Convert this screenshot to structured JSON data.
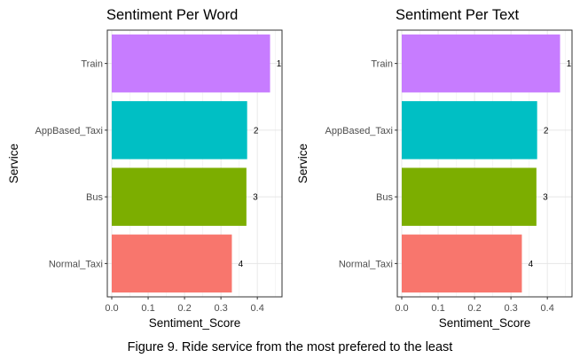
{
  "caption": "Figure 9. Ride service from the most prefered to the least",
  "chart_data": [
    {
      "type": "bar",
      "orientation": "horizontal",
      "title": "Sentiment Per Word",
      "xlabel": "Sentiment_Score",
      "ylabel": "Service",
      "categories": [
        "Normal_Taxi",
        "Bus",
        "AppBased_Taxi",
        "Train"
      ],
      "values": [
        0.33,
        0.37,
        0.372,
        0.435
      ],
      "bar_labels": [
        "4",
        "3",
        "2",
        "1"
      ],
      "colors": [
        "#F8766D",
        "#7CAE00",
        "#00BFC4",
        "#C77CFF"
      ],
      "xlim": [
        0,
        0.48
      ],
      "xticks": [
        0.0,
        0.1,
        0.2,
        0.3,
        0.4
      ],
      "xtick_labels": [
        "0.0",
        "0.1",
        "0.2",
        "0.3",
        "0.4"
      ],
      "grid": true,
      "legend": "none"
    },
    {
      "type": "bar",
      "orientation": "horizontal",
      "title": "Sentiment Per Text",
      "xlabel": "Sentiment_Score",
      "ylabel": "Service",
      "categories": [
        "Normal_Taxi",
        "Bus",
        "AppBased_Taxi",
        "Train"
      ],
      "values": [
        0.33,
        0.37,
        0.372,
        0.435
      ],
      "bar_labels": [
        "4",
        "3",
        "2",
        "1"
      ],
      "colors": [
        "#F8766D",
        "#7CAE00",
        "#00BFC4",
        "#C77CFF"
      ],
      "xlim": [
        0,
        0.48
      ],
      "xticks": [
        0.0,
        0.1,
        0.2,
        0.3,
        0.4
      ],
      "xtick_labels": [
        "0.0",
        "0.1",
        "0.2",
        "0.3",
        "0.4"
      ],
      "grid": true,
      "legend": "none"
    }
  ]
}
